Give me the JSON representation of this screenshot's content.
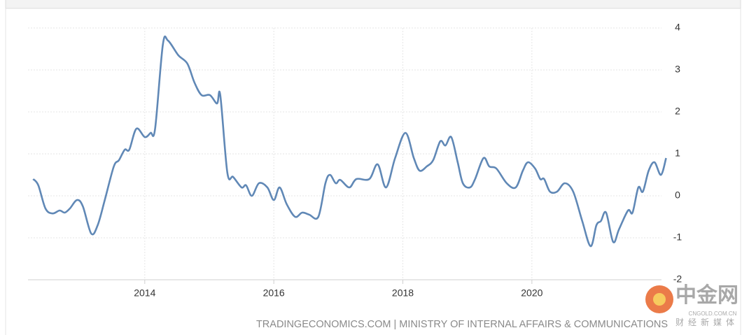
{
  "chart_data": {
    "type": "line",
    "source": "TRADINGECONOMICS.COM | MINISTRY OF INTERNAL AFFAIRS & COMMUNICATIONS",
    "watermark": {
      "name": "中金网",
      "site": "CNGOLD.COM.CN",
      "tagline": "财经新媒体"
    },
    "grid": true,
    "xlim": [
      2012.19,
      2022.15
    ],
    "xticks": [
      2014,
      2016,
      2018,
      2020
    ],
    "ylim": [
      -2,
      4
    ],
    "yticks": [
      -2,
      -1,
      0,
      1,
      2,
      3,
      4
    ],
    "series": [
      {
        "color": "#6088b6",
        "x": [
          2012.27,
          2012.35,
          2012.46,
          2012.57,
          2012.68,
          2012.76,
          2012.84,
          2012.95,
          2013.04,
          2013.17,
          2013.27,
          2013.38,
          2013.52,
          2013.6,
          2013.69,
          2013.76,
          2013.87,
          2014.0,
          2014.09,
          2014.16,
          2014.28,
          2014.36,
          2014.52,
          2014.66,
          2014.77,
          2014.88,
          2015.01,
          2015.12,
          2015.17,
          2015.28,
          2015.37,
          2015.5,
          2015.57,
          2015.66,
          2015.77,
          2015.9,
          2016.0,
          2016.09,
          2016.2,
          2016.33,
          2016.44,
          2016.55,
          2016.69,
          2016.8,
          2016.87,
          2016.96,
          2017.03,
          2017.17,
          2017.28,
          2017.48,
          2017.61,
          2017.74,
          2017.88,
          2018.04,
          2018.17,
          2018.26,
          2018.37,
          2018.47,
          2018.58,
          2018.66,
          2018.75,
          2018.85,
          2018.93,
          2019.04,
          2019.12,
          2019.25,
          2019.34,
          2019.45,
          2019.61,
          2019.75,
          2019.86,
          2019.94,
          2020.05,
          2020.13,
          2020.19,
          2020.28,
          2020.39,
          2020.51,
          2020.64,
          2020.78,
          2020.91,
          2021.0,
          2021.07,
          2021.15,
          2021.26,
          2021.35,
          2021.49,
          2021.56,
          2021.65,
          2021.72,
          2021.81,
          2021.9,
          2022.0,
          2022.08
        ],
        "values": [
          0.4,
          0.25,
          -0.3,
          -0.42,
          -0.35,
          -0.4,
          -0.3,
          -0.1,
          -0.25,
          -0.9,
          -0.7,
          -0.1,
          0.7,
          0.85,
          1.1,
          1.1,
          1.6,
          1.4,
          1.5,
          1.6,
          3.6,
          3.7,
          3.35,
          3.15,
          2.7,
          2.4,
          2.4,
          2.2,
          2.4,
          0.55,
          0.45,
          0.2,
          0.25,
          0.0,
          0.3,
          0.2,
          -0.1,
          0.2,
          -0.2,
          -0.5,
          -0.4,
          -0.45,
          -0.5,
          0.3,
          0.5,
          0.3,
          0.38,
          0.2,
          0.4,
          0.4,
          0.75,
          0.2,
          0.9,
          1.5,
          0.9,
          0.6,
          0.7,
          0.85,
          1.3,
          1.2,
          1.4,
          0.8,
          0.3,
          0.2,
          0.4,
          0.9,
          0.7,
          0.65,
          0.3,
          0.2,
          0.6,
          0.8,
          0.65,
          0.4,
          0.4,
          0.1,
          0.1,
          0.3,
          0.1,
          -0.6,
          -1.2,
          -0.7,
          -0.6,
          -0.4,
          -1.1,
          -0.8,
          -0.35,
          -0.4,
          0.2,
          0.1,
          0.6,
          0.8,
          0.5,
          0.9
        ]
      }
    ]
  }
}
